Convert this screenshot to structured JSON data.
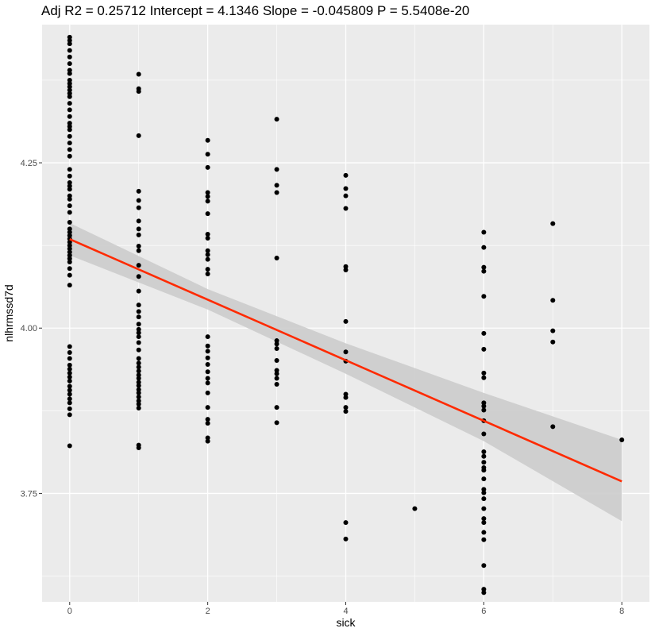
{
  "chart_data": {
    "type": "scatter",
    "title": "Adj R2 =  0.25712 Intercept = 4.1346  Slope = -0.045809  P = 5.5408e-20",
    "xlabel": "sick",
    "ylabel": "nlhrmssd7d",
    "xlim": [
      -0.4,
      8.4
    ],
    "ylim": [
      3.586,
      4.459
    ],
    "x_ticks": [
      0,
      2,
      4,
      6,
      8
    ],
    "x_minor_ticks": [
      1,
      3,
      5,
      7
    ],
    "y_ticks": [
      3.75,
      4.0,
      4.25
    ],
    "y_tick_labels": [
      "3.75",
      "4.00",
      "4.25"
    ],
    "y_minor_ticks": [
      3.625,
      3.875,
      4.125,
      4.375
    ],
    "grid": true,
    "colors": {
      "panel_background": "#ebebeb",
      "grid": "#ffffff",
      "points": "#000000",
      "fit_line": "#ff2a00",
      "confidence_band": "#cccccc"
    },
    "regression": {
      "intercept": 4.1346,
      "slope": -0.045809,
      "x_range": [
        0,
        8
      ]
    },
    "confidence_band": [
      {
        "x": 0,
        "lower": 4.11,
        "upper": 4.159
      },
      {
        "x": 2,
        "lower": 4.028,
        "upper": 4.059
      },
      {
        "x": 4,
        "lower": 3.931,
        "upper": 3.977
      },
      {
        "x": 6,
        "lower": 3.829,
        "upper": 3.902
      },
      {
        "x": 8,
        "lower": 3.708,
        "upper": 3.831
      }
    ],
    "series": [
      {
        "type": "scatter",
        "points": [
          [
            0,
            4.44
          ],
          [
            0,
            4.435
          ],
          [
            0,
            4.43
          ],
          [
            0,
            4.42
          ],
          [
            0,
            4.41
          ],
          [
            0,
            4.4
          ],
          [
            0,
            4.39
          ],
          [
            0,
            4.385
          ],
          [
            0,
            4.375
          ],
          [
            0,
            4.37
          ],
          [
            0,
            4.365
          ],
          [
            0,
            4.36
          ],
          [
            0,
            4.355
          ],
          [
            0,
            4.35
          ],
          [
            0,
            4.34
          ],
          [
            0,
            4.33
          ],
          [
            0,
            4.32
          ],
          [
            0,
            4.31
          ],
          [
            0,
            4.305
          ],
          [
            0,
            4.3
          ],
          [
            0,
            4.29
          ],
          [
            0,
            4.28
          ],
          [
            0,
            4.27
          ],
          [
            0,
            4.26
          ],
          [
            0,
            4.24
          ],
          [
            0,
            4.23
          ],
          [
            0,
            4.22
          ],
          [
            0,
            4.215
          ],
          [
            0,
            4.21
          ],
          [
            0,
            4.2
          ],
          [
            0,
            4.195
          ],
          [
            0,
            4.185
          ],
          [
            0,
            4.175
          ],
          [
            0,
            4.16
          ],
          [
            0,
            4.15
          ],
          [
            0,
            4.145
          ],
          [
            0,
            4.14
          ],
          [
            0,
            4.135
          ],
          [
            0,
            4.13
          ],
          [
            0,
            4.125
          ],
          [
            0,
            4.12
          ],
          [
            0,
            4.115
          ],
          [
            0,
            4.11
          ],
          [
            0,
            4.105
          ],
          [
            0,
            4.1
          ],
          [
            0,
            4.09
          ],
          [
            0,
            4.08
          ],
          [
            0,
            4.065
          ],
          [
            0,
            3.972
          ],
          [
            0,
            3.963
          ],
          [
            0,
            3.954
          ],
          [
            0,
            3.944
          ],
          [
            0,
            3.938
          ],
          [
            0,
            3.932
          ],
          [
            0,
            3.926
          ],
          [
            0,
            3.92
          ],
          [
            0,
            3.912
          ],
          [
            0,
            3.906
          ],
          [
            0,
            3.9
          ],
          [
            0,
            3.893
          ],
          [
            0,
            3.887
          ],
          [
            0,
            3.878
          ],
          [
            0,
            3.869
          ],
          [
            0,
            3.822
          ],
          [
            1,
            4.384
          ],
          [
            1,
            4.362
          ],
          [
            1,
            4.358
          ],
          [
            1,
            4.291
          ],
          [
            1,
            4.207
          ],
          [
            1,
            4.193
          ],
          [
            1,
            4.182
          ],
          [
            1,
            4.162
          ],
          [
            1,
            4.15
          ],
          [
            1,
            4.141
          ],
          [
            1,
            4.124
          ],
          [
            1,
            4.117
          ],
          [
            1,
            4.095
          ],
          [
            1,
            4.078
          ],
          [
            1,
            4.056
          ],
          [
            1,
            4.035
          ],
          [
            1,
            4.025
          ],
          [
            1,
            4.017
          ],
          [
            1,
            4.006
          ],
          [
            1,
            3.998
          ],
          [
            1,
            3.993
          ],
          [
            1,
            3.987
          ],
          [
            1,
            3.978
          ],
          [
            1,
            3.967
          ],
          [
            1,
            3.954
          ],
          [
            1,
            3.947
          ],
          [
            1,
            3.941
          ],
          [
            1,
            3.935
          ],
          [
            1,
            3.929
          ],
          [
            1,
            3.924
          ],
          [
            1,
            3.918
          ],
          [
            1,
            3.913
          ],
          [
            1,
            3.907
          ],
          [
            1,
            3.902
          ],
          [
            1,
            3.896
          ],
          [
            1,
            3.89
          ],
          [
            1,
            3.885
          ],
          [
            1,
            3.879
          ],
          [
            1,
            3.823
          ],
          [
            1,
            3.819
          ],
          [
            2,
            4.284
          ],
          [
            2,
            4.263
          ],
          [
            2,
            4.243
          ],
          [
            2,
            4.205
          ],
          [
            2,
            4.199
          ],
          [
            2,
            4.192
          ],
          [
            2,
            4.173
          ],
          [
            2,
            4.142
          ],
          [
            2,
            4.136
          ],
          [
            2,
            4.117
          ],
          [
            2,
            4.111
          ],
          [
            2,
            4.104
          ],
          [
            2,
            4.089
          ],
          [
            2,
            4.082
          ],
          [
            2,
            3.987
          ],
          [
            2,
            3.973
          ],
          [
            2,
            3.965
          ],
          [
            2,
            3.955
          ],
          [
            2,
            3.945
          ],
          [
            2,
            3.934
          ],
          [
            2,
            3.924
          ],
          [
            2,
            3.917
          ],
          [
            2,
            3.902
          ],
          [
            2,
            3.88
          ],
          [
            2,
            3.862
          ],
          [
            2,
            3.856
          ],
          [
            2,
            3.834
          ],
          [
            2,
            3.829
          ],
          [
            3,
            4.316
          ],
          [
            3,
            4.24
          ],
          [
            3,
            4.216
          ],
          [
            3,
            4.205
          ],
          [
            3,
            4.106
          ],
          [
            3,
            3.981
          ],
          [
            3,
            3.976
          ],
          [
            3,
            3.969
          ],
          [
            3,
            3.951
          ],
          [
            3,
            3.936
          ],
          [
            3,
            3.931
          ],
          [
            3,
            3.924
          ],
          [
            3,
            3.915
          ],
          [
            3,
            3.88
          ],
          [
            3,
            3.857
          ],
          [
            4,
            4.231
          ],
          [
            4,
            4.211
          ],
          [
            4,
            4.2
          ],
          [
            4,
            4.181
          ],
          [
            4,
            4.093
          ],
          [
            4,
            4.088
          ],
          [
            4,
            4.01
          ],
          [
            4,
            3.964
          ],
          [
            4,
            3.95
          ],
          [
            4,
            3.9
          ],
          [
            4,
            3.895
          ],
          [
            4,
            3.88
          ],
          [
            4,
            3.874
          ],
          [
            4,
            3.706
          ],
          [
            4,
            3.681
          ],
          [
            5,
            3.727
          ],
          [
            6,
            4.145
          ],
          [
            6,
            4.122
          ],
          [
            6,
            4.092
          ],
          [
            6,
            4.086
          ],
          [
            6,
            4.048
          ],
          [
            6,
            3.992
          ],
          [
            6,
            3.968
          ],
          [
            6,
            3.932
          ],
          [
            6,
            3.925
          ],
          [
            6,
            3.887
          ],
          [
            6,
            3.882
          ],
          [
            6,
            3.876
          ],
          [
            6,
            3.86
          ],
          [
            6,
            3.84
          ],
          [
            6,
            3.813
          ],
          [
            6,
            3.806
          ],
          [
            6,
            3.797
          ],
          [
            6,
            3.789
          ],
          [
            6,
            3.785
          ],
          [
            6,
            3.772
          ],
          [
            6,
            3.756
          ],
          [
            6,
            3.751
          ],
          [
            6,
            3.742
          ],
          [
            6,
            3.727
          ],
          [
            6,
            3.712
          ],
          [
            6,
            3.706
          ],
          [
            6,
            3.691
          ],
          [
            6,
            3.68
          ],
          [
            6,
            3.641
          ],
          [
            6,
            3.605
          ],
          [
            6,
            3.6
          ],
          [
            7,
            4.158
          ],
          [
            7,
            4.042
          ],
          [
            7,
            3.996
          ],
          [
            7,
            3.979
          ],
          [
            7,
            3.851
          ],
          [
            8,
            3.831
          ]
        ]
      }
    ]
  }
}
